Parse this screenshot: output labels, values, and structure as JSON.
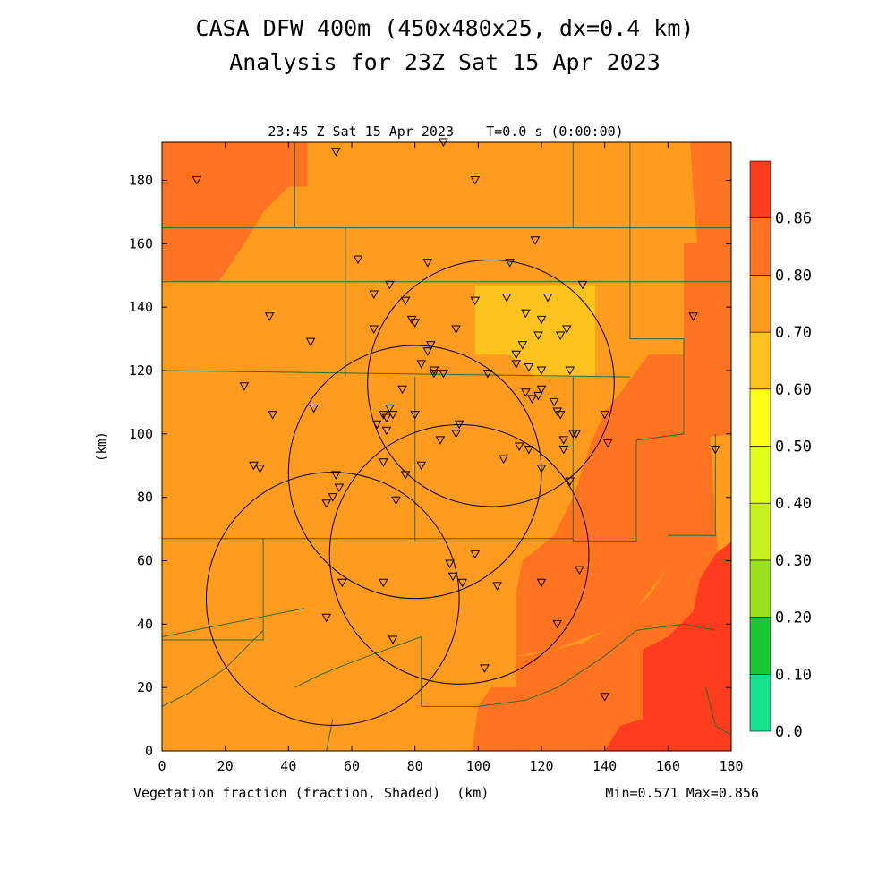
{
  "title": {
    "line1": "CASA DFW 400m (450x480x25, dx=0.4 km)",
    "line2": "Analysis for 23Z Sat 15 Apr 2023"
  },
  "chart_data": {
    "type": "heatmap",
    "subtitle": "23:45 Z Sat 15 Apr 2023    T=0.0 s (0:00:00)",
    "xlabel": "Vegetation fraction (fraction, Shaded)  (km)",
    "ylabel": "(km)",
    "minmax": "Min=0.571 Max=0.856",
    "xlim": [
      0,
      180
    ],
    "ylim": [
      0,
      192
    ],
    "xticks": [
      0,
      20,
      40,
      60,
      80,
      100,
      120,
      140,
      160,
      180
    ],
    "yticks": [
      0,
      20,
      40,
      60,
      80,
      100,
      120,
      140,
      160,
      180
    ],
    "colorbar": {
      "levels": [
        "0.0",
        "0.10",
        "0.20",
        "0.30",
        "0.40",
        "0.50",
        "0.60",
        "0.70",
        "0.80",
        "0.86"
      ],
      "colors": [
        "#19e28e",
        "#19c832",
        "#9be11e",
        "#c8f01e",
        "#e1ff1e",
        "#ffff1e",
        "#ffc31e",
        "#ff9b1e",
        "#ff7321",
        "#ff3c1e"
      ]
    },
    "fill_colors": {
      "c050": "#ffc31e",
      "c060": "#ff9b1e",
      "c070": "#ff7321",
      "c080": "#ff3c1e"
    },
    "regions": [
      {
        "level": "c050",
        "poly": [
          [
            99,
            147
          ],
          [
            137,
            147
          ],
          [
            137,
            118
          ],
          [
            118,
            118
          ],
          [
            110,
            125
          ],
          [
            99,
            125
          ]
        ]
      },
      {
        "level": "c070",
        "poly": [
          [
            0,
            192
          ],
          [
            46,
            192
          ],
          [
            46,
            178
          ],
          [
            40,
            178
          ],
          [
            32,
            170
          ],
          [
            26,
            160
          ],
          [
            18,
            148
          ],
          [
            0,
            148
          ]
        ]
      },
      {
        "level": "c070",
        "poly": [
          [
            167,
            192
          ],
          [
            180,
            192
          ],
          [
            180,
            100
          ],
          [
            173,
            99
          ],
          [
            172,
            92
          ],
          [
            173,
            72
          ],
          [
            168,
            66
          ],
          [
            160,
            58
          ],
          [
            155,
            50
          ],
          [
            150,
            45
          ],
          [
            146,
            42
          ],
          [
            140,
            38
          ],
          [
            133,
            34
          ],
          [
            124,
            32
          ],
          [
            116,
            30
          ],
          [
            112,
            30
          ],
          [
            112,
            20
          ],
          [
            104,
            20
          ],
          [
            100,
            14
          ],
          [
            98,
            0
          ],
          [
            180,
            0
          ]
        ]
      },
      {
        "level": "c070",
        "poly": [
          [
            180,
            160
          ],
          [
            165,
            160
          ],
          [
            165,
            125
          ],
          [
            154,
            125
          ],
          [
            145,
            113
          ],
          [
            140,
            107
          ],
          [
            136,
            98
          ],
          [
            130,
            80
          ],
          [
            124,
            68
          ],
          [
            114,
            60
          ],
          [
            112,
            50
          ],
          [
            112,
            30
          ],
          [
            124,
            32
          ],
          [
            140,
            38
          ],
          [
            150,
            45
          ],
          [
            160,
            58
          ],
          [
            168,
            66
          ],
          [
            173,
            72
          ],
          [
            172,
            92
          ],
          [
            173,
            99
          ],
          [
            180,
            100
          ]
        ]
      },
      {
        "level": "c080",
        "poly": [
          [
            180,
            66
          ],
          [
            175,
            62
          ],
          [
            170,
            54
          ],
          [
            168,
            44
          ],
          [
            160,
            36
          ],
          [
            152,
            32
          ],
          [
            152,
            10
          ],
          [
            145,
            8
          ],
          [
            140,
            0
          ],
          [
            180,
            0
          ]
        ]
      }
    ],
    "borders": [
      [
        [
          0,
          165
        ],
        [
          180,
          165
        ]
      ],
      [
        [
          0,
          148
        ],
        [
          180,
          148
        ]
      ],
      [
        [
          42,
          192
        ],
        [
          42,
          165
        ]
      ],
      [
        [
          58,
          165
        ],
        [
          58,
          118
        ]
      ],
      [
        [
          0,
          120
        ],
        [
          148,
          118
        ]
      ],
      [
        [
          130,
          192
        ],
        [
          130,
          165
        ]
      ],
      [
        [
          148,
          192
        ],
        [
          148,
          130
        ],
        [
          165,
          130
        ],
        [
          165,
          100
        ],
        [
          150,
          98
        ],
        [
          150,
          66
        ],
        [
          130,
          66
        ]
      ],
      [
        [
          0,
          67
        ],
        [
          130,
          67
        ]
      ],
      [
        [
          80,
          118
        ],
        [
          80,
          66
        ]
      ],
      [
        [
          130,
          118
        ],
        [
          130,
          66
        ]
      ],
      [
        [
          45,
          45
        ],
        [
          0,
          36
        ]
      ],
      [
        [
          32,
          67
        ],
        [
          32,
          35
        ],
        [
          0,
          35
        ]
      ],
      [
        [
          32,
          38
        ],
        [
          20,
          26
        ],
        [
          8,
          18
        ],
        [
          0,
          14
        ]
      ],
      [
        [
          82,
          36
        ],
        [
          60,
          28
        ],
        [
          50,
          24
        ],
        [
          42,
          20
        ]
      ],
      [
        [
          82,
          36
        ],
        [
          82,
          14
        ],
        [
          100,
          14
        ]
      ],
      [
        [
          100,
          14
        ],
        [
          115,
          16
        ],
        [
          125,
          20
        ],
        [
          140,
          30
        ],
        [
          150,
          38
        ],
        [
          165,
          40
        ],
        [
          175,
          38
        ]
      ],
      [
        [
          160,
          68
        ],
        [
          175,
          68
        ],
        [
          175,
          100
        ]
      ],
      [
        [
          172,
          20
        ],
        [
          175,
          8
        ],
        [
          180,
          5
        ]
      ],
      [
        [
          52,
          0
        ],
        [
          54,
          10
        ]
      ]
    ],
    "range_rings": [
      {
        "cx": 104,
        "cy": 116,
        "r": 39
      },
      {
        "cx": 80,
        "cy": 88,
        "r": 40
      },
      {
        "cx": 94,
        "cy": 62,
        "r": 41
      },
      {
        "cx": 54,
        "cy": 48,
        "r": 40
      }
    ],
    "stations": [
      [
        11,
        180
      ],
      [
        55,
        189
      ],
      [
        89,
        192
      ],
      [
        99,
        180
      ],
      [
        62,
        155
      ],
      [
        72,
        147
      ],
      [
        84,
        154
      ],
      [
        110,
        154
      ],
      [
        118,
        161
      ],
      [
        133,
        147
      ],
      [
        67,
        144
      ],
      [
        77,
        142
      ],
      [
        99,
        142
      ],
      [
        109,
        143
      ],
      [
        122,
        143
      ],
      [
        34,
        137
      ],
      [
        79,
        136
      ],
      [
        80,
        135
      ],
      [
        115,
        138
      ],
      [
        120,
        136
      ],
      [
        67,
        133
      ],
      [
        93,
        133
      ],
      [
        119,
        131
      ],
      [
        126,
        131
      ],
      [
        128,
        133
      ],
      [
        47,
        129
      ],
      [
        84,
        126
      ],
      [
        85,
        128
      ],
      [
        112,
        125
      ],
      [
        114,
        128
      ],
      [
        82,
        122
      ],
      [
        86,
        120
      ],
      [
        86,
        119
      ],
      [
        89,
        119
      ],
      [
        103,
        119
      ],
      [
        112,
        122
      ],
      [
        116,
        121
      ],
      [
        120,
        120
      ],
      [
        129,
        120
      ],
      [
        168,
        137
      ],
      [
        26,
        115
      ],
      [
        76,
        114
      ],
      [
        115,
        113
      ],
      [
        117,
        111
      ],
      [
        119,
        112
      ],
      [
        120,
        114
      ],
      [
        124,
        110
      ],
      [
        125,
        107
      ],
      [
        48,
        108
      ],
      [
        72,
        108
      ],
      [
        35,
        106
      ],
      [
        70,
        106
      ],
      [
        71,
        105
      ],
      [
        73,
        106
      ],
      [
        80,
        106
      ],
      [
        68,
        103
      ],
      [
        94,
        103
      ],
      [
        126,
        106
      ],
      [
        140,
        106
      ],
      [
        131,
        100
      ],
      [
        71,
        101
      ],
      [
        93,
        100
      ],
      [
        130,
        100
      ],
      [
        88,
        98
      ],
      [
        127,
        98
      ],
      [
        141,
        97
      ],
      [
        175,
        95
      ],
      [
        113,
        96
      ],
      [
        116,
        95
      ],
      [
        127,
        95
      ],
      [
        70,
        91
      ],
      [
        82,
        90
      ],
      [
        108,
        92
      ],
      [
        120,
        89
      ],
      [
        29,
        90
      ],
      [
        31,
        89
      ],
      [
        55,
        87
      ],
      [
        77,
        87
      ],
      [
        129,
        85
      ],
      [
        56,
        83
      ],
      [
        54,
        80
      ],
      [
        52,
        78
      ],
      [
        74,
        79
      ],
      [
        99,
        62
      ],
      [
        91,
        59
      ],
      [
        132,
        57
      ],
      [
        92,
        55
      ],
      [
        95,
        53
      ],
      [
        57,
        53
      ],
      [
        70,
        53
      ],
      [
        106,
        52
      ],
      [
        120,
        53
      ],
      [
        52,
        42
      ],
      [
        73,
        35
      ],
      [
        125,
        40
      ],
      [
        102,
        26
      ],
      [
        140,
        17
      ]
    ]
  }
}
